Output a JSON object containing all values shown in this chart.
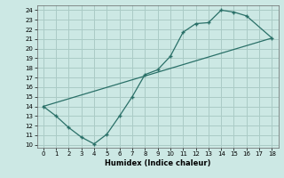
{
  "xlabel": "Humidex (Indice chaleur)",
  "bg_color": "#cce8e4",
  "grid_color": "#aacbc6",
  "line_color": "#2a7068",
  "xlim": [
    -0.5,
    18.5
  ],
  "ylim": [
    9.7,
    24.5
  ],
  "xticks": [
    0,
    1,
    2,
    3,
    4,
    5,
    6,
    7,
    8,
    9,
    10,
    11,
    12,
    13,
    14,
    15,
    16,
    17,
    18
  ],
  "yticks": [
    10,
    11,
    12,
    13,
    14,
    15,
    16,
    17,
    18,
    19,
    20,
    21,
    22,
    23,
    24
  ],
  "curve1_x": [
    0,
    1,
    2,
    3,
    4,
    5,
    6,
    7,
    8,
    9,
    10,
    11,
    12,
    13,
    14,
    15,
    16,
    18
  ],
  "curve1_y": [
    14,
    13,
    11.8,
    10.8,
    10.1,
    11.1,
    13.0,
    15.0,
    17.3,
    17.8,
    19.2,
    21.7,
    22.6,
    22.7,
    24.0,
    23.8,
    23.4,
    21.1
  ],
  "curve2_x": [
    0,
    18
  ],
  "curve2_y": [
    14,
    21.1
  ]
}
